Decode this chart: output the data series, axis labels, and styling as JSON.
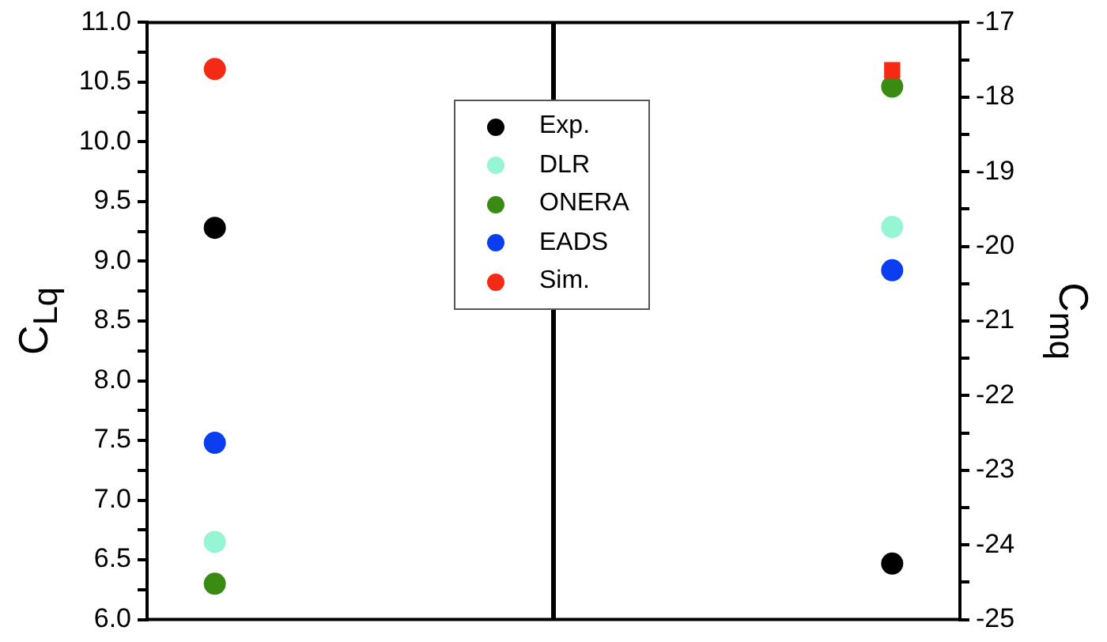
{
  "chart_data": {
    "type": "scatter",
    "ylabel": "C$_{Lq}$",
    "y2label": "C$_{mq}$",
    "categories": [
      null,
      null
    ],
    "ylim": [
      6.0,
      11.0
    ],
    "yticks": [
      {
        "value": 6,
        "label": "6.0"
      },
      {
        "value": 6.25,
        "label": null
      },
      {
        "value": 6.5,
        "label": "6.5"
      },
      {
        "value": 6.75,
        "label": null
      },
      {
        "value": 7,
        "label": "7.0"
      },
      {
        "value": 7.25,
        "label": null
      },
      {
        "value": 7.5,
        "label": "7.5"
      },
      {
        "value": 7.75,
        "label": null
      },
      {
        "value": 8,
        "label": "8.0"
      },
      {
        "value": 8.25,
        "label": null
      },
      {
        "value": 8.5,
        "label": "8.5"
      },
      {
        "value": 8.75,
        "label": null
      },
      {
        "value": 9,
        "label": "9.0"
      },
      {
        "value": 9.25,
        "label": null
      },
      {
        "value": 9.5,
        "label": "9.5"
      },
      {
        "value": 9.75,
        "label": null
      },
      {
        "value": 10,
        "label": "10.0"
      },
      {
        "value": 10.25,
        "label": null
      },
      {
        "value": 10.5,
        "label": "10.5"
      },
      {
        "value": 10.75,
        "label": null
      },
      {
        "value": 11,
        "label": "11.0"
      }
    ],
    "y2lim": [
      -25,
      -17
    ],
    "y2ticks": [
      -25,
      {
        "value": -24.5,
        "label": null
      },
      -24,
      {
        "value": -23.5,
        "label": null
      },
      -23,
      {
        "value": -22.5,
        "label": null
      },
      -22,
      {
        "value": -21.5,
        "label": null
      },
      -21,
      {
        "value": -20.5,
        "label": null
      },
      -20,
      {
        "value": -19.5,
        "label": null
      },
      -19,
      {
        "value": -18.5,
        "label": null
      },
      -18,
      {
        "value": -17.5,
        "label": null
      },
      -17
    ],
    "tick_labels": "y",
    "grid": false,
    "legend": "top",
    "marker": "circle",
    "series": [
      {
        "name": "Exp.",
        "color": "#000000",
        "values": [
          9.28,
          null
        ]
      },
      {
        "name": "DLR",
        "color": "#96f5d2",
        "values": [
          6.65,
          null
        ]
      },
      {
        "name": "ONERA",
        "color": "#3a8a14",
        "values": [
          6.3,
          null
        ]
      },
      {
        "name": "EADS",
        "color": "#0a3ef0",
        "values": [
          7.48,
          null
        ]
      },
      {
        "name": "Sim.",
        "color": "#f52a14",
        "values": [
          10.61,
          null
        ]
      },
      {
        "color": "#000000",
        "axis": "y2",
        "values": [
          null,
          -24.25
        ]
      },
      {
        "color": "#96f5d2",
        "axis": "y2",
        "values": [
          null,
          -19.74
        ]
      },
      {
        "color": "#f52a14",
        "axis": "y2",
        "marker": "square",
        "values": [
          null,
          -17.64
        ]
      },
      {
        "color": "#3a8a14",
        "axis": "y2",
        "values": [
          null,
          -17.86
        ]
      },
      {
        "color": "#0a3ef0",
        "axis": "y2",
        "values": [
          null,
          -20.32
        ]
      }
    ]
  }
}
